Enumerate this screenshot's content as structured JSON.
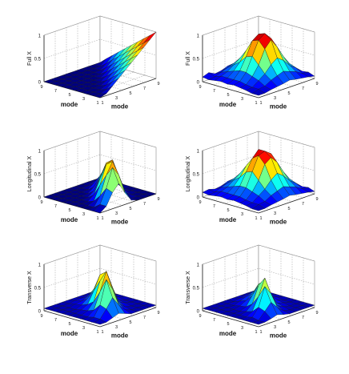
{
  "figure": {
    "panels": [
      {
        "id": "full-x-left",
        "zlabel": "Full X",
        "xlabel": "mode",
        "ylabel": "mode",
        "zticks": [
          "0",
          "0.5",
          "1"
        ],
        "xticks": [
          "1",
          "3",
          "5",
          "7",
          "9"
        ],
        "yticks": [
          "9",
          "7",
          "5",
          "3",
          "1"
        ]
      },
      {
        "id": "full-x-right",
        "zlabel": "Full X",
        "xlabel": "mode",
        "ylabel": "mode",
        "zticks": [
          "0",
          "0.5",
          "1"
        ],
        "xticks": [
          "1",
          "3",
          "5",
          "7",
          "9"
        ],
        "yticks": [
          "9",
          "7",
          "5",
          "3",
          "1"
        ]
      },
      {
        "id": "longitudinal-x-left",
        "zlabel": "Longitudinal X",
        "xlabel": "mode",
        "ylabel": "mode",
        "zticks": [
          "0",
          "0.5",
          "1"
        ],
        "xticks": [
          "1",
          "3",
          "5",
          "7",
          "9"
        ],
        "yticks": [
          "9",
          "7",
          "5",
          "3",
          "1"
        ]
      },
      {
        "id": "longitudinal-x-right",
        "zlabel": "Longitudinal X",
        "xlabel": "mode",
        "ylabel": "mode",
        "zticks": [
          "0",
          "0.5",
          "1"
        ],
        "xticks": [
          "1",
          "3",
          "5",
          "7",
          "9"
        ],
        "yticks": [
          "9",
          "7",
          "5",
          "3",
          "1"
        ]
      },
      {
        "id": "transverse-x-left",
        "zlabel": "Transverse X",
        "xlabel": "mode",
        "ylabel": "mode",
        "zticks": [
          "0",
          "0.5",
          "1"
        ],
        "xticks": [
          "1",
          "3",
          "5",
          "7",
          "9"
        ],
        "yticks": [
          "9",
          "7",
          "5",
          "3",
          "1"
        ]
      },
      {
        "id": "transverse-x-right",
        "zlabel": "Transverse X",
        "xlabel": "mode",
        "ylabel": "mode",
        "zticks": [
          "0",
          "0.5",
          "1"
        ],
        "xticks": [
          "1",
          "3",
          "5",
          "7",
          "9"
        ],
        "yticks": [
          "9",
          "7",
          "5",
          "3",
          "1"
        ]
      }
    ]
  },
  "chart_data": [
    {
      "type": "surface",
      "panel": "full-x-left",
      "x": [
        1,
        2,
        3,
        4,
        5,
        6,
        7,
        8,
        9,
        10
      ],
      "y": [
        1,
        2,
        3,
        4,
        5,
        6,
        7,
        8,
        9,
        10
      ],
      "zlim": [
        0,
        1
      ],
      "colormap": "jet",
      "z": [
        [
          0.0,
          0.0,
          0.0,
          0.0,
          0.0,
          0.0,
          0.0,
          0.0,
          0.0,
          0.0
        ],
        [
          0.12,
          0.0,
          0.0,
          0.0,
          0.0,
          0.0,
          0.0,
          0.0,
          0.0,
          0.0
        ],
        [
          0.23,
          0.1,
          0.0,
          0.0,
          0.0,
          0.0,
          0.0,
          0.0,
          0.0,
          0.0
        ],
        [
          0.34,
          0.22,
          0.1,
          0.0,
          0.0,
          0.0,
          0.0,
          0.0,
          0.0,
          0.0
        ],
        [
          0.45,
          0.33,
          0.21,
          0.09,
          0.0,
          0.0,
          0.0,
          0.0,
          0.0,
          0.0
        ],
        [
          0.56,
          0.44,
          0.32,
          0.2,
          0.08,
          0.0,
          0.0,
          0.0,
          0.0,
          0.0
        ],
        [
          0.67,
          0.55,
          0.43,
          0.31,
          0.19,
          0.07,
          0.0,
          0.0,
          0.0,
          0.0
        ],
        [
          0.78,
          0.66,
          0.54,
          0.42,
          0.3,
          0.18,
          0.06,
          0.0,
          0.0,
          0.0
        ],
        [
          0.89,
          0.77,
          0.65,
          0.53,
          0.41,
          0.29,
          0.17,
          0.05,
          0.0,
          0.0
        ],
        [
          1.0,
          0.88,
          0.76,
          0.64,
          0.52,
          0.4,
          0.28,
          0.16,
          0.04,
          0.0
        ]
      ]
    },
    {
      "type": "surface",
      "panel": "full-x-right",
      "x": [
        1,
        2,
        3,
        4,
        5,
        6,
        7,
        8,
        9,
        10
      ],
      "y": [
        1,
        2,
        3,
        4,
        5,
        6,
        7,
        8,
        9,
        10
      ],
      "zlim": [
        0,
        1
      ],
      "colormap": "jet",
      "z": [
        [
          0.05,
          0.1,
          0.08,
          0.1,
          0.12,
          0.15,
          0.1,
          0.08,
          0.15,
          0.1
        ],
        [
          0.08,
          0.15,
          0.2,
          0.25,
          0.3,
          0.25,
          0.2,
          0.15,
          0.1,
          0.08
        ],
        [
          0.1,
          0.2,
          0.3,
          0.4,
          0.45,
          0.4,
          0.3,
          0.2,
          0.15,
          0.1
        ],
        [
          0.12,
          0.25,
          0.4,
          0.6,
          0.7,
          0.6,
          0.4,
          0.25,
          0.15,
          0.12
        ],
        [
          0.1,
          0.3,
          0.5,
          0.8,
          0.95,
          0.85,
          0.55,
          0.3,
          0.15,
          0.1
        ],
        [
          0.12,
          0.3,
          0.6,
          0.85,
          1.0,
          0.9,
          0.6,
          0.3,
          0.15,
          0.12
        ],
        [
          0.1,
          0.25,
          0.45,
          0.7,
          0.9,
          0.75,
          0.45,
          0.25,
          0.12,
          0.1
        ],
        [
          0.08,
          0.2,
          0.3,
          0.45,
          0.55,
          0.45,
          0.3,
          0.2,
          0.1,
          0.08
        ],
        [
          0.1,
          0.12,
          0.2,
          0.25,
          0.3,
          0.25,
          0.2,
          0.12,
          0.1,
          0.05
        ],
        [
          0.05,
          0.08,
          0.1,
          0.12,
          0.15,
          0.12,
          0.1,
          0.08,
          0.05,
          0.05
        ]
      ]
    },
    {
      "type": "surface",
      "panel": "longitudinal-x-left",
      "x": [
        1,
        2,
        3,
        4,
        5,
        6,
        7,
        8,
        9,
        10
      ],
      "y": [
        1,
        2,
        3,
        4,
        5,
        6,
        7,
        8,
        9,
        10
      ],
      "zlim": [
        0,
        1
      ],
      "colormap": "jet",
      "z": [
        [
          0.0,
          0.0,
          0.0,
          0.0,
          0.0,
          0.0,
          0.0,
          0.0,
          0.0,
          0.0
        ],
        [
          0.02,
          0.05,
          0.05,
          0.0,
          0.0,
          0.0,
          0.0,
          0.0,
          0.0,
          0.0
        ],
        [
          0.05,
          0.15,
          0.2,
          0.1,
          0.0,
          0.0,
          0.0,
          0.0,
          0.0,
          0.0
        ],
        [
          0.02,
          0.1,
          0.35,
          0.3,
          0.1,
          0.0,
          0.0,
          0.0,
          0.0,
          0.0
        ],
        [
          0.0,
          0.05,
          0.3,
          0.55,
          0.35,
          0.1,
          0.0,
          0.0,
          0.0,
          0.0
        ],
        [
          0.0,
          0.0,
          0.15,
          0.5,
          0.7,
          0.4,
          0.1,
          0.0,
          0.0,
          0.0
        ],
        [
          0.0,
          0.0,
          0.05,
          0.3,
          0.8,
          0.75,
          0.35,
          0.05,
          0.0,
          0.0
        ],
        [
          0.0,
          0.0,
          0.0,
          0.1,
          0.5,
          0.85,
          0.6,
          0.2,
          0.0,
          0.0
        ],
        [
          0.0,
          0.0,
          0.0,
          0.0,
          0.2,
          0.6,
          0.8,
          0.4,
          0.1,
          0.0
        ],
        [
          0.0,
          0.0,
          0.0,
          0.0,
          0.05,
          0.25,
          0.5,
          0.35,
          0.1,
          0.0
        ]
      ]
    },
    {
      "type": "surface",
      "panel": "longitudinal-x-right",
      "x": [
        1,
        2,
        3,
        4,
        5,
        6,
        7,
        8,
        9,
        10
      ],
      "y": [
        1,
        2,
        3,
        4,
        5,
        6,
        7,
        8,
        9,
        10
      ],
      "zlim": [
        0,
        1
      ],
      "colormap": "jet",
      "z": [
        [
          0.05,
          0.1,
          0.08,
          0.1,
          0.12,
          0.15,
          0.1,
          0.08,
          0.12,
          0.1
        ],
        [
          0.08,
          0.15,
          0.2,
          0.25,
          0.3,
          0.25,
          0.2,
          0.15,
          0.1,
          0.08
        ],
        [
          0.1,
          0.2,
          0.3,
          0.4,
          0.45,
          0.4,
          0.3,
          0.2,
          0.15,
          0.1
        ],
        [
          0.12,
          0.25,
          0.4,
          0.6,
          0.7,
          0.6,
          0.4,
          0.25,
          0.15,
          0.12
        ],
        [
          0.1,
          0.3,
          0.5,
          0.8,
          0.95,
          0.8,
          0.55,
          0.3,
          0.15,
          0.1
        ],
        [
          0.12,
          0.3,
          0.6,
          0.85,
          0.95,
          0.9,
          0.6,
          0.3,
          0.15,
          0.12
        ],
        [
          0.1,
          0.25,
          0.45,
          0.7,
          0.85,
          0.75,
          0.45,
          0.25,
          0.12,
          0.1
        ],
        [
          0.08,
          0.2,
          0.3,
          0.45,
          0.55,
          0.45,
          0.3,
          0.2,
          0.1,
          0.08
        ],
        [
          0.1,
          0.12,
          0.2,
          0.25,
          0.3,
          0.25,
          0.2,
          0.12,
          0.1,
          0.05
        ],
        [
          0.05,
          0.08,
          0.1,
          0.12,
          0.15,
          0.12,
          0.1,
          0.08,
          0.05,
          0.05
        ]
      ]
    },
    {
      "type": "surface",
      "panel": "transverse-x-left",
      "x": [
        1,
        2,
        3,
        4,
        5,
        6,
        7,
        8,
        9,
        10
      ],
      "y": [
        1,
        2,
        3,
        4,
        5,
        6,
        7,
        8,
        9,
        10
      ],
      "zlim": [
        0,
        1
      ],
      "colormap": "jet",
      "z": [
        [
          0.05,
          0.05,
          0.05,
          0.05,
          0.05,
          0.05,
          0.05,
          0.05,
          0.05,
          0.05
        ],
        [
          0.05,
          0.08,
          0.1,
          0.1,
          0.08,
          0.08,
          0.05,
          0.05,
          0.05,
          0.05
        ],
        [
          0.05,
          0.1,
          0.15,
          0.2,
          0.15,
          0.1,
          0.08,
          0.05,
          0.05,
          0.05
        ],
        [
          0.05,
          0.1,
          0.2,
          0.4,
          0.35,
          0.2,
          0.1,
          0.05,
          0.05,
          0.05
        ],
        [
          0.05,
          0.08,
          0.15,
          0.5,
          0.7,
          0.4,
          0.15,
          0.08,
          0.05,
          0.05
        ],
        [
          0.05,
          0.05,
          0.1,
          0.3,
          0.8,
          0.65,
          0.25,
          0.1,
          0.05,
          0.05
        ],
        [
          0.05,
          0.05,
          0.08,
          0.15,
          0.5,
          0.9,
          0.5,
          0.15,
          0.05,
          0.05
        ],
        [
          0.05,
          0.05,
          0.05,
          0.08,
          0.2,
          0.55,
          0.8,
          0.3,
          0.08,
          0.05
        ],
        [
          0.05,
          0.05,
          0.05,
          0.05,
          0.1,
          0.25,
          0.45,
          0.25,
          0.08,
          0.05
        ],
        [
          0.05,
          0.05,
          0.05,
          0.05,
          0.05,
          0.1,
          0.15,
          0.1,
          0.05,
          0.05
        ]
      ]
    },
    {
      "type": "surface",
      "panel": "transverse-x-right",
      "x": [
        1,
        2,
        3,
        4,
        5,
        6,
        7,
        8,
        9,
        10
      ],
      "y": [
        1,
        2,
        3,
        4,
        5,
        6,
        7,
        8,
        9,
        10
      ],
      "zlim": [
        0,
        1
      ],
      "colormap": "jet",
      "z": [
        [
          0.05,
          0.05,
          0.05,
          0.05,
          0.05,
          0.05,
          0.05,
          0.05,
          0.05,
          0.05
        ],
        [
          0.05,
          0.08,
          0.1,
          0.1,
          0.08,
          0.05,
          0.05,
          0.05,
          0.05,
          0.05
        ],
        [
          0.05,
          0.1,
          0.15,
          0.2,
          0.15,
          0.1,
          0.05,
          0.05,
          0.05,
          0.05
        ],
        [
          0.05,
          0.1,
          0.2,
          0.3,
          0.25,
          0.15,
          0.08,
          0.05,
          0.05,
          0.05
        ],
        [
          0.05,
          0.08,
          0.15,
          0.4,
          0.5,
          0.3,
          0.1,
          0.05,
          0.05,
          0.05
        ],
        [
          0.05,
          0.05,
          0.1,
          0.25,
          0.6,
          0.55,
          0.2,
          0.08,
          0.05,
          0.05
        ],
        [
          0.05,
          0.05,
          0.08,
          0.12,
          0.35,
          0.75,
          0.4,
          0.12,
          0.05,
          0.05
        ],
        [
          0.05,
          0.05,
          0.05,
          0.08,
          0.15,
          0.45,
          0.65,
          0.25,
          0.08,
          0.05
        ],
        [
          0.05,
          0.05,
          0.05,
          0.05,
          0.08,
          0.2,
          0.35,
          0.2,
          0.05,
          0.05
        ],
        [
          0.05,
          0.05,
          0.05,
          0.05,
          0.05,
          0.08,
          0.12,
          0.08,
          0.05,
          0.05
        ]
      ]
    }
  ]
}
